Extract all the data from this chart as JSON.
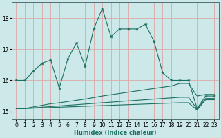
{
  "xlabel": "Humidex (Indice chaleur)",
  "background_color": "#cce8e8",
  "grid_color": "#dba8a8",
  "line_color": "#1a7060",
  "xlim": [
    -0.5,
    23.5
  ],
  "ylim": [
    14.75,
    18.5
  ],
  "yticks": [
    15,
    16,
    17,
    18
  ],
  "xticks": [
    0,
    1,
    2,
    3,
    4,
    5,
    6,
    7,
    8,
    9,
    10,
    11,
    12,
    13,
    14,
    15,
    16,
    17,
    18,
    19,
    20,
    21,
    22,
    23
  ],
  "series1_x": [
    0,
    1,
    2,
    3,
    4,
    5,
    6,
    7,
    8,
    9,
    10,
    11,
    12,
    13,
    14,
    15,
    16,
    17,
    18,
    19,
    20,
    21,
    22,
    23
  ],
  "series1_y": [
    16.0,
    16.0,
    16.3,
    16.55,
    16.65,
    15.75,
    16.7,
    17.2,
    16.45,
    17.65,
    18.3,
    17.4,
    17.65,
    17.65,
    17.65,
    17.8,
    17.25,
    16.25,
    16.0,
    16.0,
    16.0,
    15.1,
    15.5,
    15.5
  ],
  "series2_x": [
    0,
    1,
    2,
    3,
    4,
    5,
    6,
    7,
    8,
    9,
    10,
    11,
    12,
    13,
    14,
    15,
    16,
    17,
    18,
    19,
    20,
    21,
    22,
    23
  ],
  "series2_y": [
    15.1,
    15.1,
    15.15,
    15.2,
    15.25,
    15.28,
    15.32,
    15.36,
    15.4,
    15.45,
    15.5,
    15.54,
    15.58,
    15.62,
    15.66,
    15.7,
    15.74,
    15.78,
    15.82,
    15.9,
    15.9,
    15.5,
    15.55,
    15.55
  ],
  "series3_x": [
    0,
    1,
    2,
    3,
    4,
    5,
    6,
    7,
    8,
    9,
    10,
    11,
    12,
    13,
    14,
    15,
    16,
    17,
    18,
    19,
    20,
    21,
    22,
    23
  ],
  "series3_y": [
    15.1,
    15.1,
    15.12,
    15.14,
    15.16,
    15.18,
    15.2,
    15.22,
    15.24,
    15.26,
    15.28,
    15.3,
    15.32,
    15.34,
    15.36,
    15.38,
    15.4,
    15.42,
    15.44,
    15.46,
    15.46,
    15.08,
    15.42,
    15.42
  ],
  "series4_x": [
    0,
    1,
    2,
    3,
    4,
    5,
    6,
    7,
    8,
    9,
    10,
    11,
    12,
    13,
    14,
    15,
    16,
    17,
    18,
    19,
    20,
    21,
    22,
    23
  ],
  "series4_y": [
    15.1,
    15.1,
    15.11,
    15.12,
    15.13,
    15.14,
    15.15,
    15.16,
    15.17,
    15.18,
    15.19,
    15.2,
    15.21,
    15.22,
    15.23,
    15.24,
    15.25,
    15.26,
    15.27,
    15.28,
    15.28,
    15.05,
    15.38,
    15.38
  ],
  "xlabel_fontsize": 6,
  "tick_fontsize": 5.5
}
